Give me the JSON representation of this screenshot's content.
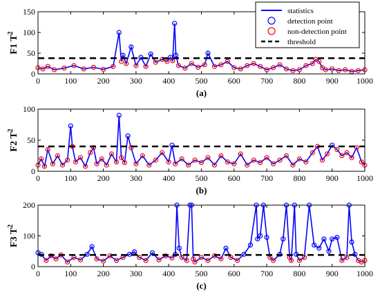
{
  "legend": {
    "placement": "top-right",
    "entries": [
      {
        "label": "statistics",
        "style": "line",
        "color": "#0000ff"
      },
      {
        "label": "detection point",
        "style": "circle",
        "color": "#0000ff"
      },
      {
        "label": "non-detection point",
        "style": "circle",
        "color": "#ff0000"
      },
      {
        "label": "threshold",
        "style": "dashed",
        "color": "#000000"
      }
    ]
  },
  "colors": {
    "statistics": "#0000ff",
    "detection": "#0000ff",
    "non_detection": "#ff0000",
    "threshold": "#000000",
    "axes": "#000000"
  },
  "chart_data": [
    {
      "type": "line",
      "panel_label": "(a)",
      "ylabel_main": "F1 T",
      "ylabel_sup": "2",
      "xlim": [
        0,
        1000
      ],
      "ylim": [
        0,
        150
      ],
      "xticks": [
        0,
        100,
        200,
        300,
        400,
        500,
        600,
        700,
        800,
        900,
        1000
      ],
      "yticks": [
        0,
        50,
        100,
        150
      ],
      "threshold": 38,
      "grid": false,
      "series": [
        {
          "x": [
            0,
            15,
            30,
            50,
            80,
            110,
            140,
            170,
            200,
            230,
            248,
            255,
            260,
            270,
            285,
            300,
            315,
            330,
            345,
            360,
            380,
            395,
            405,
            412,
            418,
            422,
            430,
            450,
            470,
            490,
            510,
            520,
            540,
            560,
            580,
            600,
            620,
            640,
            660,
            680,
            700,
            720,
            740,
            760,
            780,
            800,
            820,
            840,
            850,
            860,
            870,
            880,
            900,
            920,
            940,
            960,
            980,
            1000
          ],
          "y": [
            15,
            12,
            18,
            10,
            14,
            20,
            12,
            16,
            11,
            18,
            100,
            30,
            45,
            25,
            65,
            20,
            40,
            18,
            48,
            28,
            35,
            30,
            40,
            32,
            122,
            45,
            20,
            14,
            25,
            16,
            22,
            50,
            18,
            22,
            30,
            15,
            12,
            20,
            25,
            18,
            10,
            15,
            22,
            12,
            8,
            10,
            20,
            25,
            35,
            30,
            15,
            10,
            12,
            8,
            10,
            6,
            8,
            10
          ]
        }
      ]
    },
    {
      "type": "line",
      "panel_label": "(b)",
      "ylabel_main": "F2 T",
      "ylabel_sup": "2",
      "xlim": [
        0,
        1000
      ],
      "ylim": [
        0,
        100
      ],
      "xticks": [
        0,
        100,
        200,
        300,
        400,
        500,
        600,
        700,
        800,
        900,
        1000
      ],
      "yticks": [
        0,
        50,
        100
      ],
      "threshold": 40,
      "grid": false,
      "series": [
        {
          "x": [
            0,
            10,
            20,
            30,
            45,
            60,
            75,
            90,
            100,
            105,
            115,
            130,
            145,
            160,
            170,
            180,
            195,
            210,
            225,
            240,
            248,
            255,
            265,
            275,
            285,
            300,
            320,
            340,
            360,
            380,
            400,
            410,
            420,
            440,
            460,
            480,
            500,
            520,
            540,
            560,
            580,
            600,
            620,
            640,
            660,
            680,
            700,
            720,
            740,
            760,
            780,
            800,
            820,
            840,
            855,
            870,
            885,
            900,
            915,
            930,
            945,
            960,
            975,
            990,
            1000
          ],
          "y": [
            10,
            20,
            8,
            35,
            12,
            25,
            10,
            18,
            73,
            40,
            15,
            22,
            8,
            30,
            38,
            12,
            20,
            10,
            28,
            15,
            90,
            22,
            14,
            57,
            38,
            12,
            25,
            10,
            18,
            30,
            15,
            42,
            12,
            20,
            10,
            18,
            14,
            22,
            10,
            25,
            15,
            12,
            28,
            10,
            18,
            14,
            22,
            12,
            18,
            25,
            10,
            20,
            15,
            30,
            40,
            18,
            28,
            42,
            35,
            25,
            30,
            22,
            38,
            15,
            10
          ]
        }
      ]
    },
    {
      "type": "line",
      "panel_label": "(c)",
      "ylabel_main": "F3 T",
      "ylabel_sup": "2",
      "xlim": [
        0,
        1000
      ],
      "ylim": [
        0,
        200
      ],
      "xticks": [
        0,
        100,
        200,
        300,
        400,
        500,
        600,
        700,
        800,
        900,
        1000
      ],
      "yticks": [
        0,
        100,
        200
      ],
      "threshold": 38,
      "grid": false,
      "series": [
        {
          "x": [
            0,
            10,
            25,
            40,
            55,
            70,
            90,
            110,
            130,
            150,
            165,
            180,
            200,
            220,
            240,
            260,
            280,
            295,
            310,
            330,
            350,
            370,
            390,
            410,
            420,
            425,
            432,
            440,
            455,
            465,
            470,
            475,
            480,
            500,
            520,
            540,
            560,
            575,
            590,
            610,
            630,
            650,
            668,
            672,
            680,
            690,
            700,
            710,
            720,
            740,
            750,
            760,
            770,
            775,
            785,
            790,
            800,
            815,
            830,
            845,
            860,
            875,
            890,
            900,
            915,
            930,
            945,
            952,
            960,
            970,
            980,
            990,
            1000
          ],
          "y": [
            45,
            40,
            20,
            35,
            25,
            38,
            15,
            30,
            22,
            40,
            65,
            25,
            18,
            35,
            20,
            30,
            40,
            48,
            30,
            20,
            45,
            22,
            35,
            28,
            40,
            200,
            60,
            30,
            20,
            200,
            200,
            25,
            15,
            30,
            20,
            35,
            25,
            60,
            30,
            20,
            40,
            70,
            200,
            90,
            100,
            200,
            95,
            30,
            20,
            40,
            90,
            200,
            30,
            20,
            200,
            40,
            20,
            30,
            200,
            70,
            60,
            90,
            50,
            90,
            95,
            20,
            30,
            200,
            80,
            40,
            20,
            15,
            20
          ]
        }
      ]
    }
  ]
}
